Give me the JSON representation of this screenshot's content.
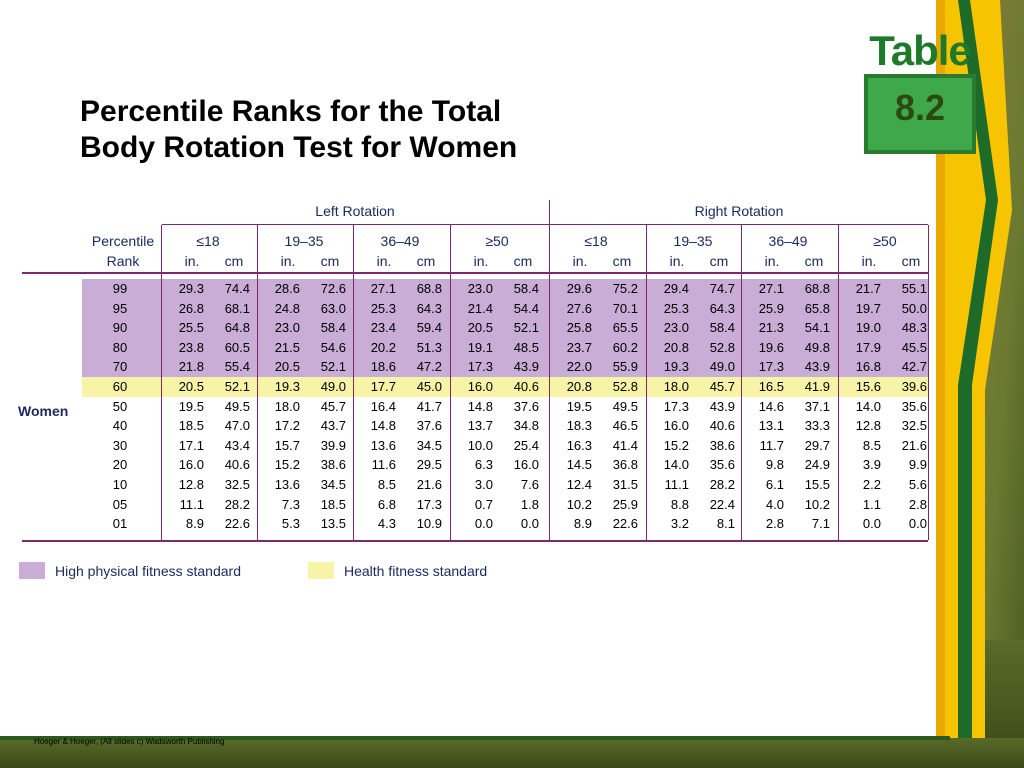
{
  "title_line1": "Percentile Ranks for the Total",
  "title_line2": "Body Rotation Test for Women",
  "badge": {
    "word": "Table",
    "number": "8.2"
  },
  "table": {
    "groups": [
      "Left Rotation",
      "Right Rotation"
    ],
    "percentile_header": [
      "Percentile",
      "Rank"
    ],
    "age_groups": [
      "≤18",
      "19–35",
      "36–49",
      "≥50",
      "≤18",
      "19–35",
      "36–49",
      "≥50"
    ],
    "units": [
      "in.",
      "cm"
    ],
    "row_label": "Women",
    "rows": [
      {
        "rank": "99",
        "vals": [
          "29.3",
          "74.4",
          "28.6",
          "72.6",
          "27.1",
          "68.8",
          "23.0",
          "58.4",
          "29.6",
          "75.2",
          "29.4",
          "74.7",
          "27.1",
          "68.8",
          "21.7",
          "55.1"
        ]
      },
      {
        "rank": "95",
        "vals": [
          "26.8",
          "68.1",
          "24.8",
          "63.0",
          "25.3",
          "64.3",
          "21.4",
          "54.4",
          "27.6",
          "70.1",
          "25.3",
          "64.3",
          "25.9",
          "65.8",
          "19.7",
          "50.0"
        ]
      },
      {
        "rank": "90",
        "vals": [
          "25.5",
          "64.8",
          "23.0",
          "58.4",
          "23.4",
          "59.4",
          "20.5",
          "52.1",
          "25.8",
          "65.5",
          "23.0",
          "58.4",
          "21.3",
          "54.1",
          "19.0",
          "48.3"
        ]
      },
      {
        "rank": "80",
        "vals": [
          "23.8",
          "60.5",
          "21.5",
          "54.6",
          "20.2",
          "51.3",
          "19.1",
          "48.5",
          "23.7",
          "60.2",
          "20.8",
          "52.8",
          "19.6",
          "49.8",
          "17.9",
          "45.5"
        ]
      },
      {
        "rank": "70",
        "vals": [
          "21.8",
          "55.4",
          "20.5",
          "52.1",
          "18.6",
          "47.2",
          "17.3",
          "43.9",
          "22.0",
          "55.9",
          "19.3",
          "49.0",
          "17.3",
          "43.9",
          "16.8",
          "42.7"
        ]
      },
      {
        "rank": "60",
        "vals": [
          "20.5",
          "52.1",
          "19.3",
          "49.0",
          "17.7",
          "45.0",
          "16.0",
          "40.6",
          "20.8",
          "52.8",
          "18.0",
          "45.7",
          "16.5",
          "41.9",
          "15.6",
          "39.6"
        ]
      },
      {
        "rank": "50",
        "vals": [
          "19.5",
          "49.5",
          "18.0",
          "45.7",
          "16.4",
          "41.7",
          "14.8",
          "37.6",
          "19.5",
          "49.5",
          "17.3",
          "43.9",
          "14.6",
          "37.1",
          "14.0",
          "35.6"
        ]
      },
      {
        "rank": "40",
        "vals": [
          "18.5",
          "47.0",
          "17.2",
          "43.7",
          "14.8",
          "37.6",
          "13.7",
          "34.8",
          "18.3",
          "46.5",
          "16.0",
          "40.6",
          "13.1",
          "33.3",
          "12.8",
          "32.5"
        ]
      },
      {
        "rank": "30",
        "vals": [
          "17.1",
          "43.4",
          "15.7",
          "39.9",
          "13.6",
          "34.5",
          "10.0",
          "25.4",
          "16.3",
          "41.4",
          "15.2",
          "38.6",
          "11.7",
          "29.7",
          "8.5",
          "21.6"
        ]
      },
      {
        "rank": "20",
        "vals": [
          "16.0",
          "40.6",
          "15.2",
          "38.6",
          "11.6",
          "29.5",
          "6.3",
          "16.0",
          "14.5",
          "36.8",
          "14.0",
          "35.6",
          "9.8",
          "24.9",
          "3.9",
          "9.9"
        ]
      },
      {
        "rank": "10",
        "vals": [
          "12.8",
          "32.5",
          "13.6",
          "34.5",
          "8.5",
          "21.6",
          "3.0",
          "7.6",
          "12.4",
          "31.5",
          "11.1",
          "28.2",
          "6.1",
          "15.5",
          "2.2",
          "5.6"
        ]
      },
      {
        "rank": "05",
        "vals": [
          "11.1",
          "28.2",
          "7.3",
          "18.5",
          "6.8",
          "17.3",
          "0.7",
          "1.8",
          "10.2",
          "25.9",
          "8.8",
          "22.4",
          "4.0",
          "10.2",
          "1.1",
          "2.8"
        ]
      },
      {
        "rank": "01",
        "vals": [
          "8.9",
          "22.6",
          "5.3",
          "13.5",
          "4.3",
          "10.9",
          "0.0",
          "0.0",
          "8.9",
          "22.6",
          "3.2",
          "8.1",
          "2.8",
          "7.1",
          "0.0",
          "0.0"
        ]
      }
    ]
  },
  "legend": [
    {
      "label": "High physical fitness standard",
      "color": "#c9add6"
    },
    {
      "label": "Health fitness standard",
      "color": "#f7f4a8"
    }
  ],
  "colors": {
    "high_band": "#c9add6",
    "health_band": "#f7f4a8",
    "rule": "#7a2a6a",
    "header_text": "#1c2a60"
  },
  "footer": "Hoeger & Hoeger, (All slides c) Wadsworth Publishing"
}
